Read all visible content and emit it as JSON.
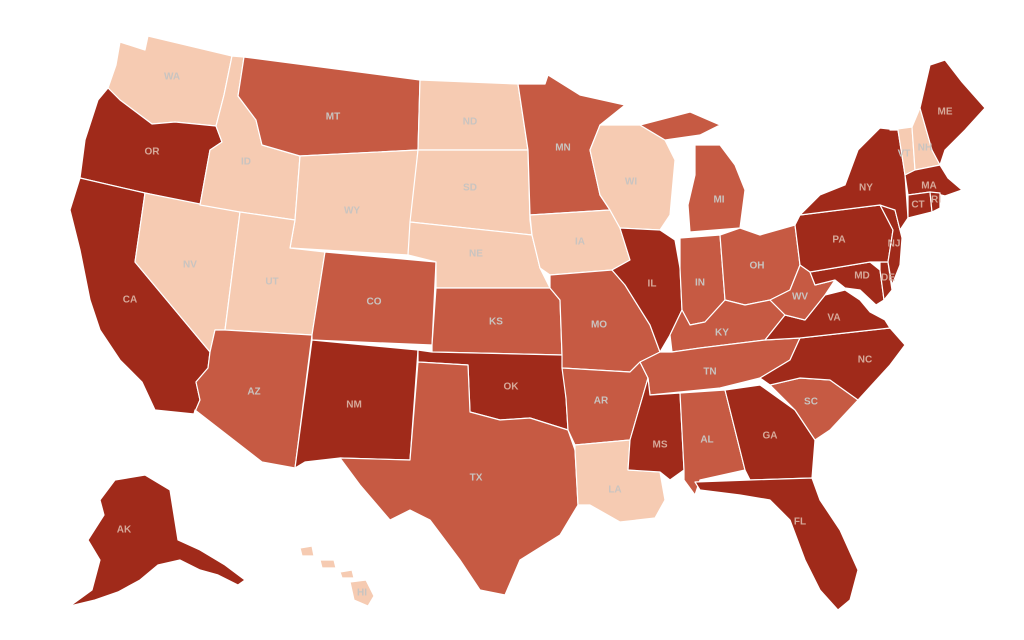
{
  "colors": {
    "c1": "#f6cbb2",
    "c2": "#c65a43",
    "c3": "#a02a1a"
  },
  "states": {
    "WA": {
      "label": "WA",
      "level": 1
    },
    "OR": {
      "label": "OR",
      "level": 3
    },
    "CA": {
      "label": "CA",
      "level": 3
    },
    "NV": {
      "label": "NV",
      "level": 1
    },
    "ID": {
      "label": "ID",
      "level": 1
    },
    "MT": {
      "label": "MT",
      "level": 2
    },
    "WY": {
      "label": "WY",
      "level": 1
    },
    "UT": {
      "label": "UT",
      "level": 1
    },
    "AZ": {
      "label": "AZ",
      "level": 2
    },
    "CO": {
      "label": "CO",
      "level": 2
    },
    "NM": {
      "label": "NM",
      "level": 3
    },
    "ND": {
      "label": "ND",
      "level": 1
    },
    "SD": {
      "label": "SD",
      "level": 1
    },
    "NE": {
      "label": "NE",
      "level": 1
    },
    "KS": {
      "label": "KS",
      "level": 2
    },
    "OK": {
      "label": "OK",
      "level": 3
    },
    "TX": {
      "label": "TX",
      "level": 2
    },
    "MN": {
      "label": "MN",
      "level": 2
    },
    "IA": {
      "label": "IA",
      "level": 1
    },
    "MO": {
      "label": "MO",
      "level": 2
    },
    "AR": {
      "label": "AR",
      "level": 2
    },
    "LA": {
      "label": "LA",
      "level": 1
    },
    "WI": {
      "label": "WI",
      "level": 1
    },
    "IL": {
      "label": "IL",
      "level": 3
    },
    "MI": {
      "label": "MI",
      "level": 2
    },
    "IN": {
      "label": "IN",
      "level": 2
    },
    "OH": {
      "label": "OH",
      "level": 2
    },
    "KY": {
      "label": "KY",
      "level": 2
    },
    "TN": {
      "label": "TN",
      "level": 2
    },
    "MS": {
      "label": "MS",
      "level": 3
    },
    "AL": {
      "label": "AL",
      "level": 2
    },
    "GA": {
      "label": "GA",
      "level": 3
    },
    "FL": {
      "label": "FL",
      "level": 3
    },
    "SC": {
      "label": "SC",
      "level": 2
    },
    "NC": {
      "label": "NC",
      "level": 3
    },
    "VA": {
      "label": "VA",
      "level": 3
    },
    "WV": {
      "label": "WV",
      "level": 2
    },
    "PA": {
      "label": "PA",
      "level": 3
    },
    "NY": {
      "label": "NY",
      "level": 3
    },
    "VT": {
      "label": "VT",
      "level": 1
    },
    "NH": {
      "label": "NH",
      "level": 1
    },
    "ME": {
      "label": "ME",
      "level": 3
    },
    "MA": {
      "label": "MA",
      "level": 3
    },
    "CT": {
      "label": "CT",
      "level": 3
    },
    "RI": {
      "label": "RI",
      "level": 3
    },
    "NJ": {
      "label": "NJ",
      "level": 3
    },
    "DE": {
      "label": "DE",
      "level": 3
    },
    "MD": {
      "label": "MD",
      "level": 3
    },
    "AK": {
      "label": "AK",
      "level": 3
    },
    "HI": {
      "label": "HI",
      "level": 1
    }
  }
}
